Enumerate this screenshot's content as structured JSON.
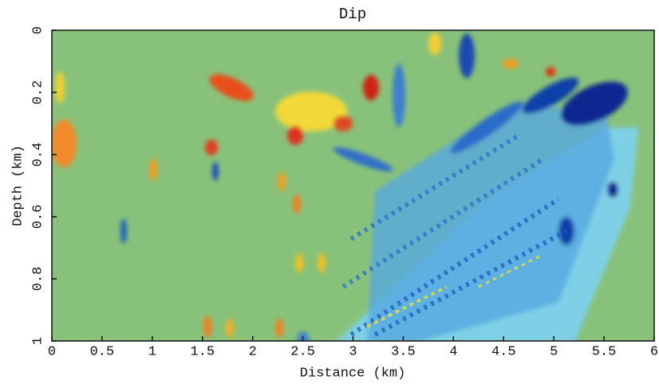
{
  "chart_data": {
    "type": "image",
    "title": "Dip",
    "x_label": "Distance (km)",
    "y_label": "Depth (km)",
    "xlim": [
      0,
      6
    ],
    "xticks": [
      0,
      0.5,
      1,
      1.5,
      2,
      2.5,
      3,
      3.5,
      4,
      4.5,
      5,
      5.5,
      6
    ],
    "ylim": [
      1,
      0
    ],
    "yticks": [
      0,
      0.2,
      0.4,
      0.6,
      0.8,
      1
    ]
  }
}
